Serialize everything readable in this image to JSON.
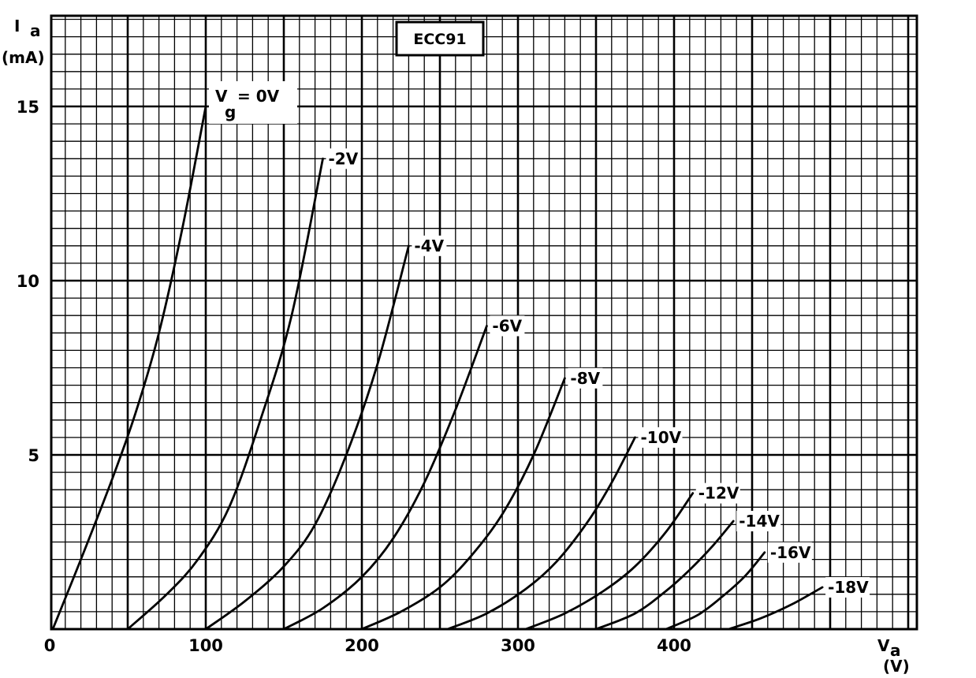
{
  "chart_data": {
    "type": "line",
    "title": "ECC91",
    "ylabel_main": "I",
    "ylabel_sub": "a",
    "ylabel_unit": "(mA)",
    "xlabel_main": "V",
    "xlabel_sub": "a",
    "xlabel_unit": "(V)",
    "xlim": [
      0,
      450
    ],
    "ylim": [
      0,
      17
    ],
    "x_ticks": [
      0,
      100,
      200,
      300,
      400
    ],
    "x_tick_labels": [
      "0",
      "100",
      "200",
      "300",
      "400"
    ],
    "y_ticks": [
      5,
      10,
      15
    ],
    "y_tick_labels": [
      "5",
      "10",
      "15"
    ],
    "grid": true,
    "series": [
      {
        "name": "Vg = 0V",
        "label_main": "V",
        "label_sub": "g",
        "label_rest": "= 0V",
        "x": [
          2,
          20,
          40,
          55,
          70,
          85,
          100
        ],
        "y": [
          0,
          2.0,
          4.3,
          6.2,
          8.5,
          11.5,
          15.0
        ]
      },
      {
        "name": "-2V",
        "x": [
          50,
          75,
          95,
          115,
          135,
          155,
          175
        ],
        "y": [
          0,
          1.0,
          2.0,
          3.5,
          6.0,
          9.0,
          13.5
        ]
      },
      {
        "name": "-4V",
        "x": [
          100,
          125,
          150,
          170,
          190,
          210,
          230
        ],
        "y": [
          0,
          0.8,
          1.8,
          3.0,
          5.0,
          7.6,
          11.0
        ]
      },
      {
        "name": "-6V",
        "x": [
          150,
          175,
          200,
          220,
          240,
          260,
          280
        ],
        "y": [
          0,
          0.6,
          1.5,
          2.6,
          4.2,
          6.3,
          8.7
        ]
      },
      {
        "name": "-8V",
        "x": [
          200,
          225,
          250,
          270,
          290,
          310,
          330
        ],
        "y": [
          0,
          0.5,
          1.2,
          2.1,
          3.3,
          5.0,
          7.2
        ]
      },
      {
        "name": "-10V",
        "x": [
          255,
          280,
          305,
          325,
          345,
          360,
          375
        ],
        "y": [
          0,
          0.45,
          1.15,
          1.95,
          3.1,
          4.2,
          5.5
        ]
      },
      {
        "name": "-12V",
        "x": [
          305,
          330,
          355,
          375,
          395,
          412
        ],
        "y": [
          0,
          0.45,
          1.1,
          1.8,
          2.8,
          3.9
        ]
      },
      {
        "name": "-14V",
        "x": [
          350,
          375,
          395,
          410,
          425,
          438
        ],
        "y": [
          0,
          0.45,
          1.1,
          1.7,
          2.4,
          3.1
        ]
      },
      {
        "name": "-16V",
        "x": [
          395,
          415,
          430,
          445,
          458
        ],
        "y": [
          0,
          0.4,
          0.9,
          1.5,
          2.2
        ]
      },
      {
        "name": "-18V",
        "x": [
          435,
          455,
          475,
          495
        ],
        "y": [
          0,
          0.3,
          0.7,
          1.2
        ]
      }
    ]
  }
}
